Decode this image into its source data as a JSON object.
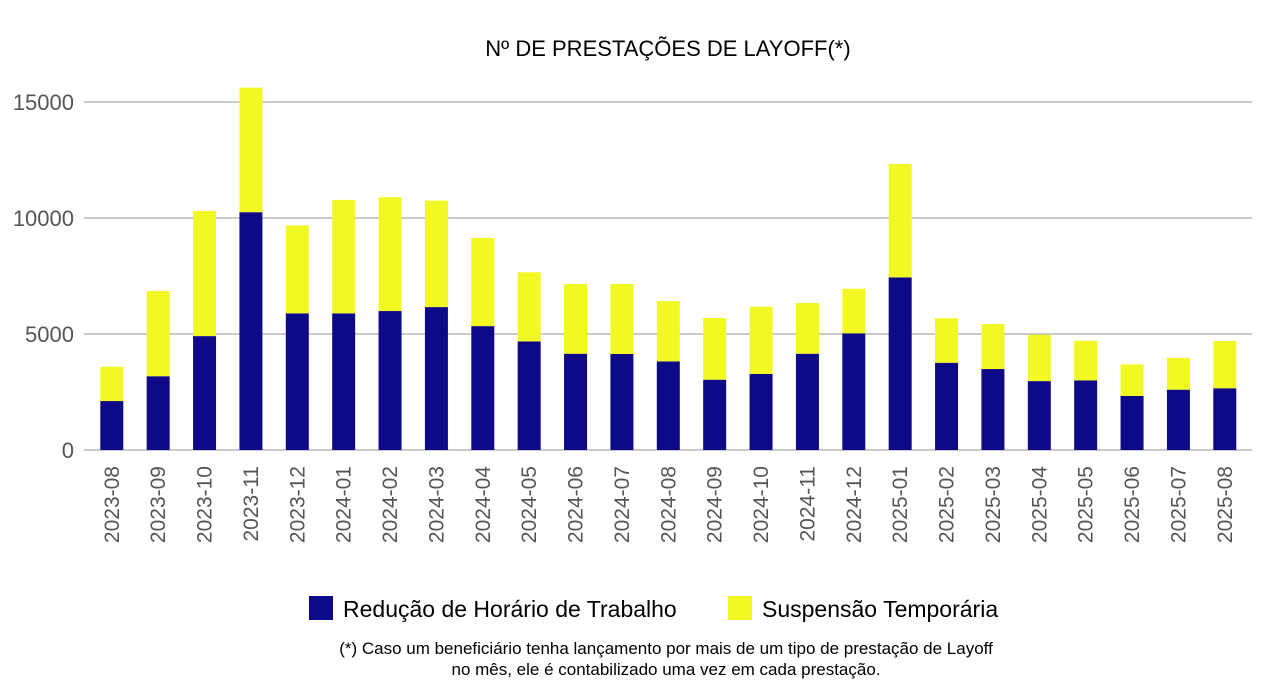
{
  "chart_data": {
    "type": "bar",
    "stacked": true,
    "title": "Nº DE PRESTAÇÕES DE LAYOFF(*)",
    "xlabel": "",
    "ylabel": "",
    "ylim": [
      0,
      15000
    ],
    "yticks": [
      0,
      5000,
      10000,
      15000
    ],
    "grid": true,
    "legend_position": "bottom",
    "categories": [
      "2023-08",
      "2023-09",
      "2023-10",
      "2023-11",
      "2023-12",
      "2024-01",
      "2024-02",
      "2024-03",
      "2024-04",
      "2024-05",
      "2024-06",
      "2024-07",
      "2024-08",
      "2024-09",
      "2024-10",
      "2024-11",
      "2024-12",
      "2025-01",
      "2025-02",
      "2025-03",
      "2025-04",
      "2025-05",
      "2025-06",
      "2025-07",
      "2025-08"
    ],
    "series": [
      {
        "name": "Redução de Horário de Trabalho",
        "color": "#0e0a87",
        "values": [
          2110,
          3180,
          4910,
          10250,
          5890,
          5890,
          5990,
          6160,
          5340,
          4680,
          4150,
          4140,
          3820,
          3030,
          3280,
          4150,
          5030,
          7440,
          3760,
          3490,
          2970,
          3000,
          2330,
          2600,
          2660
        ]
      },
      {
        "name": "Suspensão Temporária",
        "color": "#f2f824",
        "values": [
          1480,
          3670,
          5390,
          5370,
          3790,
          4890,
          4910,
          4590,
          3800,
          2980,
          3010,
          3020,
          2600,
          2660,
          2900,
          2190,
          1920,
          4890,
          1920,
          1940,
          2000,
          1710,
          1360,
          1370,
          2040
        ]
      }
    ],
    "footnote": [
      "(*) Caso um beneficiário tenha lançamento por mais de um tipo de prestação de Layoff",
      "no mês, ele é contabilizado uma vez em cada prestação."
    ]
  }
}
